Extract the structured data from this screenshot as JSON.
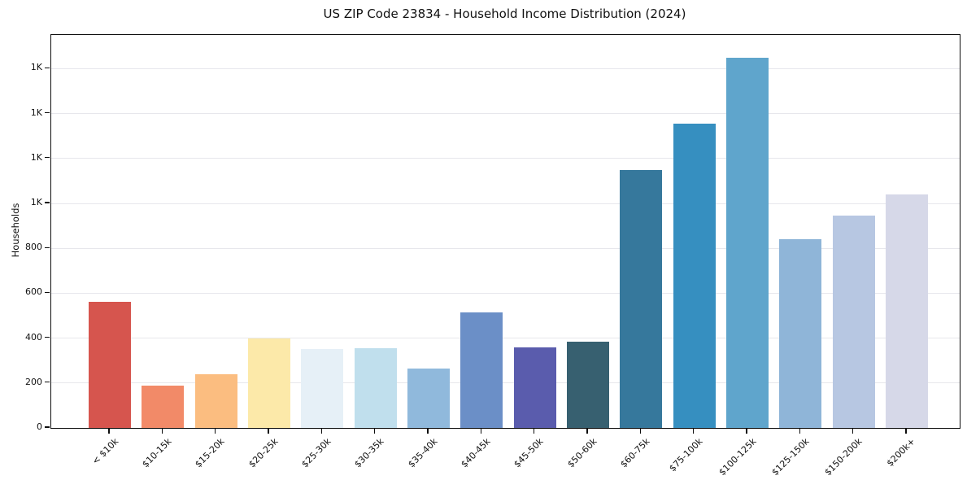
{
  "title": "US ZIP Code 23834 - Household Income Distribution (2024)",
  "chart_data": {
    "type": "bar",
    "title": "US ZIP Code 23834 - Household Income Distribution (2024)",
    "xlabel": "",
    "ylabel": "Households",
    "categories": [
      "< $10k",
      "$10-15k",
      "$15-20k",
      "$20-25k",
      "$25-30k",
      "$30-35k",
      "$35-40k",
      "$40-45k",
      "$45-50k",
      "$50-60k",
      "$60-75k",
      "$75-100k",
      "$100-125k",
      "$125-150k",
      "$150-200k",
      "$200k+"
    ],
    "values": [
      560,
      190,
      240,
      400,
      350,
      355,
      265,
      515,
      360,
      385,
      1150,
      1355,
      1650,
      840,
      945,
      1040
    ],
    "bar_colors": [
      "#d6554e",
      "#f28a68",
      "#fbbd80",
      "#fce9a9",
      "#e6f0f7",
      "#c0dfed",
      "#90b9dc",
      "#6b8fc7",
      "#5a5cad",
      "#376070",
      "#36789c",
      "#368fc0",
      "#5fa5cc",
      "#8fb5d8",
      "#b7c7e2",
      "#d6d8e8"
    ],
    "ylim": [
      0,
      1750
    ],
    "yticks": [
      {
        "value": 0,
        "label": "0"
      },
      {
        "value": 200,
        "label": "200"
      },
      {
        "value": 400,
        "label": "400"
      },
      {
        "value": 600,
        "label": "600"
      },
      {
        "value": 800,
        "label": "800"
      },
      {
        "value": 1000,
        "label": "1K"
      },
      {
        "value": 1200,
        "label": "1K"
      },
      {
        "value": 1400,
        "label": "1K"
      },
      {
        "value": 1600,
        "label": "1K"
      }
    ],
    "grid": "horizontal",
    "legend": "none",
    "background": "#ffffff",
    "frame_color": "#0d0d0d",
    "grid_color": "#e7e7ec"
  }
}
